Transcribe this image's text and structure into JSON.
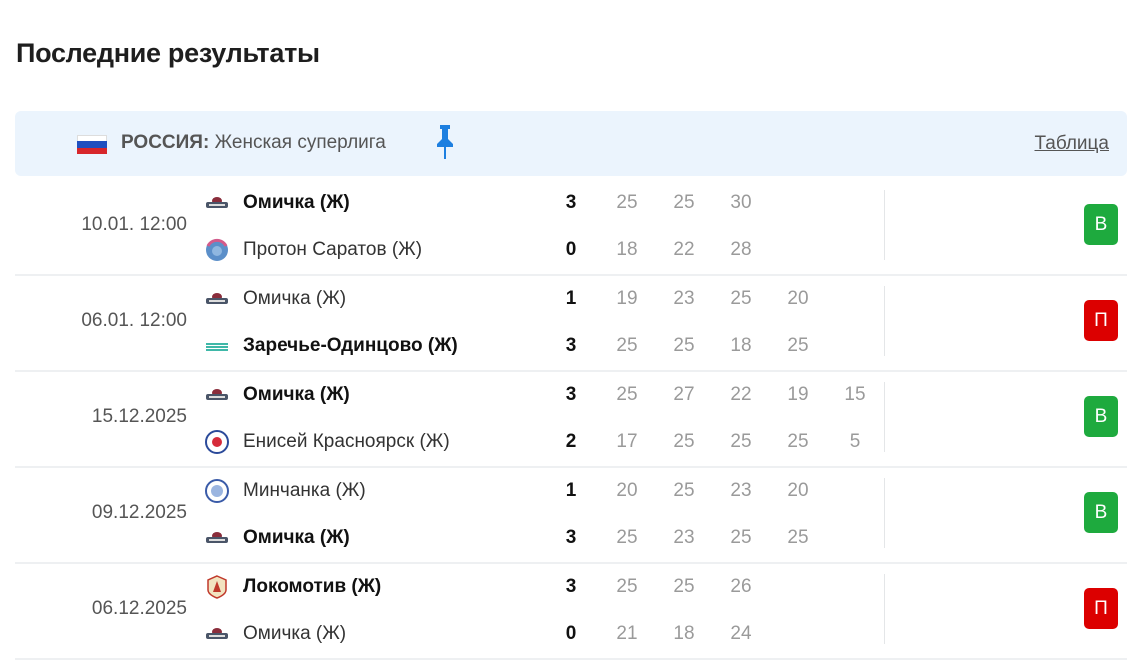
{
  "title": "Последние результаты",
  "league": {
    "country": "РОССИЯ:",
    "name": "Женская суперлига",
    "table_link": "Таблица",
    "flag_colors": [
      "#ffffff",
      "#1f4fbf",
      "#d7262b"
    ],
    "pin_color": "#1d7fe0"
  },
  "colors": {
    "win": "#1eaa3e",
    "loss": "#dc0000"
  },
  "matches": [
    {
      "date": "10.01. 12:00",
      "home": {
        "name": "Омичка (Ж)",
        "logo": "omichka",
        "score": "3",
        "sets": [
          "25",
          "25",
          "30"
        ],
        "win": true
      },
      "away": {
        "name": "Протон Саратов (Ж)",
        "logo": "proton",
        "score": "0",
        "sets": [
          "18",
          "22",
          "28"
        ],
        "win": false
      },
      "result": "В",
      "result_type": "win"
    },
    {
      "date": "06.01. 12:00",
      "home": {
        "name": "Омичка (Ж)",
        "logo": "omichka",
        "score": "1",
        "sets": [
          "19",
          "23",
          "25",
          "20"
        ],
        "win": false
      },
      "away": {
        "name": "Заречье-Одинцово (Ж)",
        "logo": "zarechye",
        "score": "3",
        "sets": [
          "25",
          "25",
          "18",
          "25"
        ],
        "win": true
      },
      "result": "П",
      "result_type": "loss"
    },
    {
      "date": "15.12.2025",
      "home": {
        "name": "Омичка (Ж)",
        "logo": "omichka",
        "score": "3",
        "sets": [
          "25",
          "27",
          "22",
          "19",
          "15"
        ],
        "win": true
      },
      "away": {
        "name": "Енисей Красноярск (Ж)",
        "logo": "yenisey",
        "score": "2",
        "sets": [
          "17",
          "25",
          "25",
          "25",
          "5"
        ],
        "win": false
      },
      "result": "В",
      "result_type": "win"
    },
    {
      "date": "09.12.2025",
      "home": {
        "name": "Минчанка (Ж)",
        "logo": "minchanka",
        "score": "1",
        "sets": [
          "20",
          "25",
          "23",
          "20"
        ],
        "win": false
      },
      "away": {
        "name": "Омичка (Ж)",
        "logo": "omichka",
        "score": "3",
        "sets": [
          "25",
          "23",
          "25",
          "25"
        ],
        "win": true
      },
      "result": "В",
      "result_type": "win"
    },
    {
      "date": "06.12.2025",
      "home": {
        "name": "Локомотив (Ж)",
        "logo": "lokomotiv",
        "score": "3",
        "sets": [
          "25",
          "25",
          "26"
        ],
        "win": true
      },
      "away": {
        "name": "Омичка (Ж)",
        "logo": "omichka",
        "score": "0",
        "sets": [
          "21",
          "18",
          "24"
        ],
        "win": false
      },
      "result": "П",
      "result_type": "loss"
    }
  ]
}
